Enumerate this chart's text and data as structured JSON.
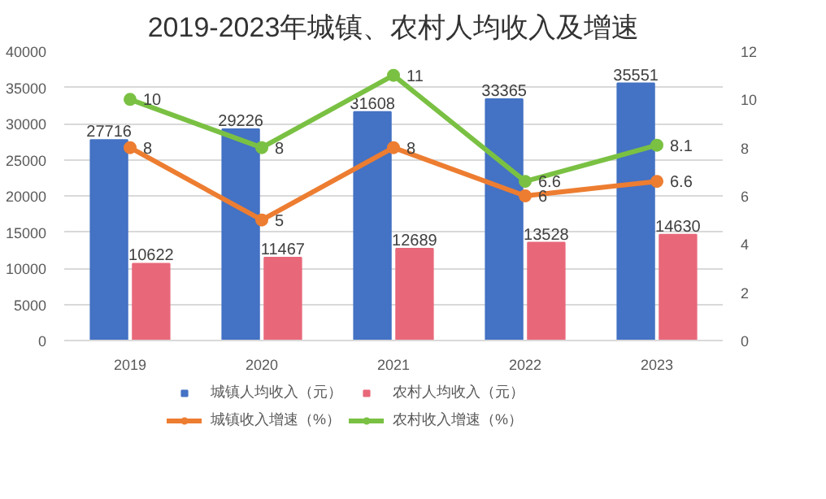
{
  "chart_data": {
    "type": "bar",
    "title": "2019-2023年城镇、农村人均收入及增速",
    "categories": [
      "2019",
      "2020",
      "2021",
      "2022",
      "2023"
    ],
    "series": [
      {
        "name": "城镇人均收入（元）",
        "color": "#4472c4",
        "values": [
          27716,
          29226,
          31608,
          33365,
          35551
        ]
      },
      {
        "name": "农村人均收入（元）",
        "color": "#e8687a",
        "values": [
          10622,
          11467,
          12689,
          13528,
          14630
        ]
      },
      {
        "name": "城镇收入增速（%）",
        "type": "line",
        "axis": "y2",
        "color": "#ed7d31",
        "values": [
          8,
          5,
          8,
          6,
          6.6
        ]
      },
      {
        "name": "农村收入增速（%）",
        "type": "line",
        "axis": "y2",
        "color": "#7ac143",
        "values": [
          10,
          8,
          11,
          6.6,
          8.1
        ]
      }
    ],
    "ylim": [
      0,
      40000
    ],
    "yticks": [
      0,
      5000,
      10000,
      15000,
      20000,
      25000,
      30000,
      35000,
      40000
    ],
    "y2lim": [
      0,
      12
    ],
    "y2ticks": [
      0,
      2,
      4,
      6,
      8,
      10,
      12
    ],
    "grid": "y",
    "legend": "bottom",
    "marker": "circle",
    "line_style": "solid",
    "data_labels": true
  }
}
